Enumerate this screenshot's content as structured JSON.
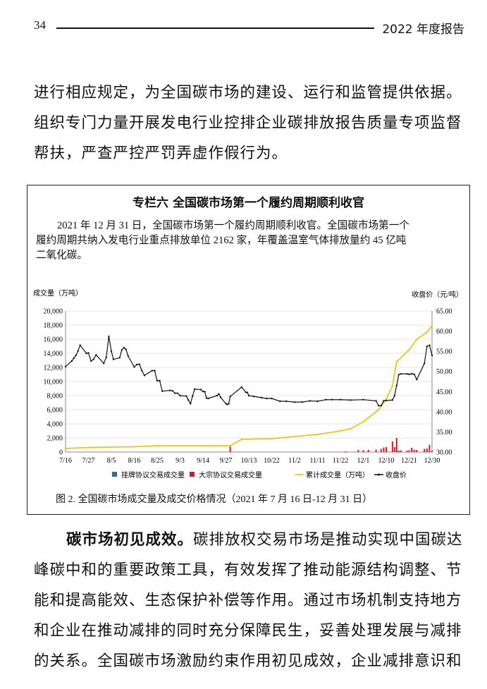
{
  "header": {
    "page_number": "34",
    "report_title": "2022 年度报告"
  },
  "top_paragraph": {
    "lines": [
      "进行相应规定，为全国碳市场的建设、运行和监管提供依据。",
      "组织专门力量开展发电行业控排企业碳排放报告质量专项监督",
      "帮扶，严查严控严罚弄虚作假行为。"
    ]
  },
  "box": {
    "title": "专栏六  全国碳市场第一个履约周期顺利收官",
    "text_lines": [
      "2021 年 12 月 31 日，全国碳市场第一个履约周期顺利收官。全国碳市场第一个",
      "履约周期共纳入发电行业重点排放单位 2162 家，年覆盖温室气体排放量约 45 亿吨",
      "二氧化碳。"
    ],
    "caption": "图 2.  全国碳市场成交量及成交价格情况（2021 年 7 月 16 日-12 月 31 日）"
  },
  "chart_data": {
    "type": "bar+line",
    "ylabel": "成交量（万吨）",
    "y2label": "收盘价（元/吨）",
    "ylim": [
      0,
      20000
    ],
    "y2lim": [
      30,
      65
    ],
    "yticks": [
      "0",
      "2,000",
      "4,000",
      "6,000",
      "8,000",
      "10,000",
      "12,000",
      "14,000",
      "16,000",
      "18,000",
      "20,000"
    ],
    "y2ticks": [
      "30.00",
      "35.00",
      "40.00",
      "45.00",
      "50.00",
      "55.00",
      "60.00",
      "65.00"
    ],
    "xticks": [
      "7/16",
      "7/27",
      "8/5",
      "8/16",
      "8/25",
      "9/3",
      "9/14",
      "9/27",
      "10/13",
      "10/22",
      "11/2",
      "11/11",
      "11/22",
      "12/1",
      "12/10",
      "12/21",
      "12/30"
    ],
    "grid": "horizontal",
    "legend_placement": "bottom",
    "legend": [
      "挂牌协议交易成交量",
      "大宗协议交易成交量",
      "累计成交量（万吨）",
      "收盘价"
    ],
    "colors": {
      "listed": "#1f6fb5",
      "block": "#e0141e",
      "cumulative": "#f0c419",
      "price": "#111111"
    },
    "block_volume": [
      [
        "9/30",
        800
      ],
      [
        "11/24",
        100
      ],
      [
        "11/29",
        300
      ],
      [
        "12/1",
        250
      ],
      [
        "12/3",
        300
      ],
      [
        "12/6",
        350
      ],
      [
        "12/8",
        450
      ],
      [
        "12/9",
        650
      ],
      [
        "12/10",
        700
      ],
      [
        "12/13",
        1500
      ],
      [
        "12/14",
        700
      ],
      [
        "12/15",
        2000
      ],
      [
        "12/16",
        200
      ],
      [
        "12/17",
        250
      ],
      [
        "12/20",
        200
      ],
      [
        "12/21",
        250
      ],
      [
        "12/22",
        600
      ],
      [
        "12/23",
        350
      ],
      [
        "12/24",
        300
      ],
      [
        "12/27",
        450
      ],
      [
        "12/28",
        500
      ],
      [
        "12/29",
        1000
      ],
      [
        "12/30",
        200
      ]
    ],
    "cumulative_volume": [
      [
        "7/16",
        500
      ],
      [
        "7/27",
        650
      ],
      [
        "8/5",
        700
      ],
      [
        "8/16",
        750
      ],
      [
        "8/25",
        900
      ],
      [
        "9/14",
        900
      ],
      [
        "9/27",
        900
      ],
      [
        "9/30",
        900
      ],
      [
        "10/8",
        1800
      ],
      [
        "10/22",
        1900
      ],
      [
        "11/2",
        2200
      ],
      [
        "11/11",
        2500
      ],
      [
        "11/22",
        3000
      ],
      [
        "11/26",
        3300
      ],
      [
        "12/1",
        4300
      ],
      [
        "12/7",
        6000
      ],
      [
        "12/10",
        7500
      ],
      [
        "12/13",
        9400
      ],
      [
        "12/15",
        12800
      ],
      [
        "12/21",
        14500
      ],
      [
        "12/24",
        16000
      ],
      [
        "12/28",
        17000
      ],
      [
        "12/30",
        17900
      ]
    ],
    "closing_price": [
      [
        "7/16",
        51.2
      ],
      [
        "7/19",
        52.6
      ],
      [
        "7/20",
        53.3
      ],
      [
        "7/21",
        54.0
      ],
      [
        "7/22",
        55.1
      ],
      [
        "7/23",
        56.5
      ],
      [
        "7/26",
        54.5
      ],
      [
        "7/27",
        54.6
      ],
      [
        "7/28",
        52.6
      ],
      [
        "7/29",
        53.0
      ],
      [
        "7/30",
        54.1
      ],
      [
        "8/2",
        52.0
      ],
      [
        "8/3",
        53.5
      ],
      [
        "8/4",
        58.7
      ],
      [
        "8/5",
        55.0
      ],
      [
        "8/6",
        53.0
      ],
      [
        "8/9",
        53.4
      ],
      [
        "8/10",
        55.3
      ],
      [
        "8/11",
        55.9
      ],
      [
        "8/12",
        55.5
      ],
      [
        "8/13",
        53.9
      ],
      [
        "8/16",
        51.1
      ],
      [
        "8/17",
        51.7
      ],
      [
        "8/18",
        51.8
      ],
      [
        "8/19",
        50.2
      ],
      [
        "8/20",
        49.0
      ],
      [
        "8/23",
        50.2
      ],
      [
        "8/24",
        50.2
      ],
      [
        "8/25",
        47.7
      ],
      [
        "8/26",
        47.7
      ],
      [
        "8/27",
        45.1
      ],
      [
        "8/30",
        45.3
      ],
      [
        "8/31",
        45.2
      ],
      [
        "9/1",
        44.6
      ],
      [
        "9/2",
        44.6
      ],
      [
        "9/3",
        44.0
      ],
      [
        "9/6",
        43.9
      ],
      [
        "9/7",
        42.9
      ],
      [
        "9/8",
        42.0
      ],
      [
        "9/9",
        43.9
      ],
      [
        "9/10",
        45.6
      ],
      [
        "9/13",
        45.5
      ],
      [
        "9/14",
        45.0
      ],
      [
        "9/15",
        45.0
      ],
      [
        "9/16",
        43.4
      ],
      [
        "9/17",
        43.3
      ],
      [
        "9/22",
        44.0
      ],
      [
        "9/23",
        44.4
      ],
      [
        "9/24",
        43.6
      ],
      [
        "9/27",
        42.0
      ],
      [
        "9/28",
        41.8
      ],
      [
        "9/29",
        42.0
      ],
      [
        "9/30",
        43.8
      ],
      [
        "10/8",
        46.1
      ],
      [
        "10/11",
        44.8
      ],
      [
        "10/12",
        44.8
      ],
      [
        "10/13",
        44.0
      ],
      [
        "10/15",
        43.8
      ],
      [
        "10/18",
        43.5
      ],
      [
        "10/20",
        43.3
      ],
      [
        "10/22",
        43.3
      ],
      [
        "10/26",
        42.6
      ],
      [
        "10/29",
        42.6
      ],
      [
        "11/2",
        42.4
      ],
      [
        "11/5",
        42.4
      ],
      [
        "11/8",
        42.7
      ],
      [
        "11/11",
        42.6
      ],
      [
        "11/15",
        43.0
      ],
      [
        "11/18",
        43.0
      ],
      [
        "11/22",
        43.0
      ],
      [
        "11/26",
        42.9
      ],
      [
        "12/1",
        43.0
      ],
      [
        "12/6",
        42.7
      ],
      [
        "12/7",
        41.5
      ],
      [
        "12/8",
        41.5
      ],
      [
        "12/9",
        42.7
      ],
      [
        "12/10",
        42.8
      ],
      [
        "12/13",
        42.9
      ],
      [
        "12/14",
        44.0
      ],
      [
        "12/15",
        46.5
      ],
      [
        "12/16",
        49.2
      ],
      [
        "12/17",
        49.4
      ],
      [
        "12/20",
        49.4
      ],
      [
        "12/21",
        49.3
      ],
      [
        "12/22",
        49.4
      ],
      [
        "12/23",
        49.3
      ],
      [
        "12/24",
        48.0
      ],
      [
        "12/27",
        52.0
      ],
      [
        "12/28",
        56.2
      ],
      [
        "12/29",
        56.5
      ],
      [
        "12/30",
        54.0
      ]
    ]
  },
  "bottom_paragraph": {
    "lead": "碳市场初见成效。",
    "first_line_rest": "碳排放权交易市场是推动实现中国碳达",
    "lines": [
      "峰碳中和的重要政策工具，有效发挥了推动能源结构调整、节",
      "能和提高能效、生态保护补偿等作用。通过市场机制支持地方",
      "和企业在推动减排的同时充分保障民生，妥善处理发展与减排",
      "的关系。全国碳市场激励约束作用初见成效，企业减排意识和"
    ]
  }
}
